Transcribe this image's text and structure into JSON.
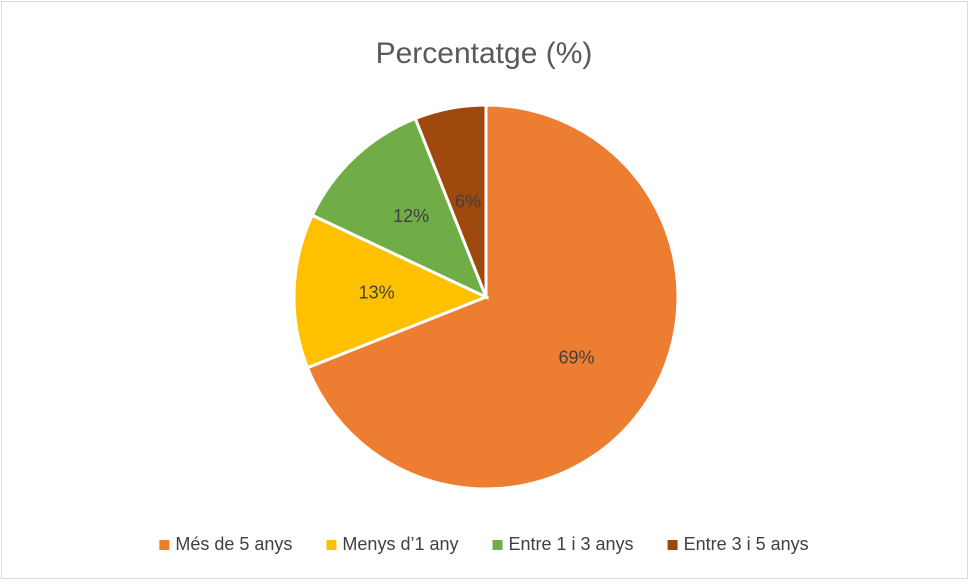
{
  "chart_data": {
    "type": "pie",
    "title": "Percentatge (%)",
    "categories": [
      "Més de 5 anys",
      "Menys d’1 any",
      "Entre 1 i 3 anys",
      "Entre 3 i 5 anys"
    ],
    "values": [
      69,
      13,
      12,
      6
    ],
    "value_labels": [
      "69%",
      "13%",
      "12%",
      "6%"
    ],
    "colors": [
      "#ED7D31",
      "#FFC000",
      "#70AD47",
      "#9E480E"
    ],
    "legend": "bottom"
  }
}
